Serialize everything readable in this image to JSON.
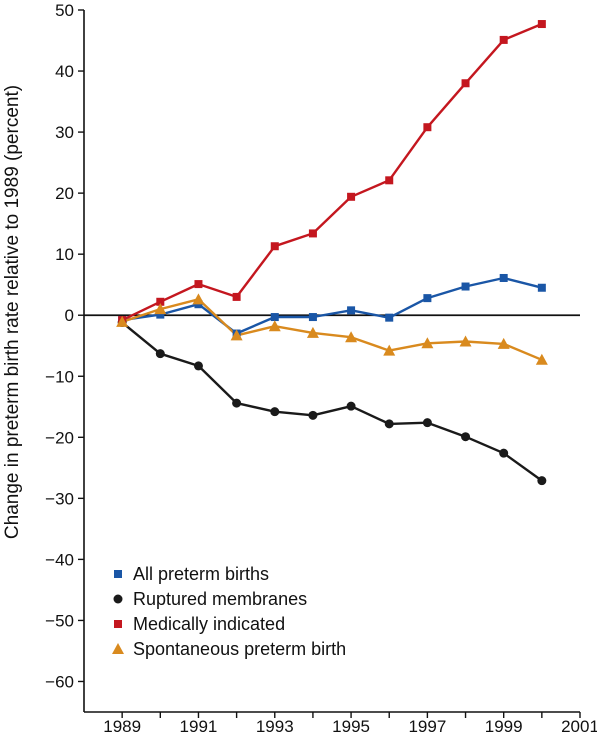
{
  "chart_data": {
    "type": "line",
    "title": "",
    "xlabel": "",
    "ylabel": "Change in preterm birth rate relative to 1989 (percent)",
    "xlim": [
      1988,
      2001
    ],
    "ylim": [
      -65,
      50
    ],
    "x_ticks": [
      1989,
      1991,
      1993,
      1995,
      1997,
      1999,
      2001
    ],
    "y_ticks": [
      50,
      40,
      30,
      20,
      10,
      0,
      -10,
      -20,
      -30,
      -40,
      -50,
      -60
    ],
    "zero_line": true,
    "grid": false,
    "legend_position": "bottom-left",
    "x": [
      1989,
      1990,
      1991,
      1992,
      1993,
      1994,
      1995,
      1996,
      1997,
      1998,
      1999,
      2000
    ],
    "series": [
      {
        "name": "All preterm births",
        "color": "#1a56a6",
        "marker": "square",
        "values": [
          -0.8,
          0.1,
          1.8,
          -3.0,
          -0.3,
          -0.3,
          0.8,
          -0.4,
          2.8,
          4.7,
          6.1,
          4.5
        ]
      },
      {
        "name": "Ruptured membranes",
        "color": "#1a1a1a",
        "marker": "circle",
        "values": [
          -1.2,
          -6.3,
          -8.3,
          -14.4,
          -15.8,
          -16.4,
          -14.9,
          -17.8,
          -17.6,
          -19.9,
          -22.6,
          -27.1
        ]
      },
      {
        "name": "Medically indicated",
        "color": "#c4171f",
        "marker": "square",
        "values": [
          -0.8,
          2.2,
          5.1,
          3.0,
          11.3,
          13.4,
          19.4,
          22.1,
          30.8,
          38.0,
          45.1,
          47.7
        ]
      },
      {
        "name": "Spontaneous preterm birth",
        "color": "#d98a1e",
        "marker": "triangle",
        "values": [
          -1.1,
          1.0,
          2.6,
          -3.3,
          -1.8,
          -2.9,
          -3.6,
          -5.8,
          -4.6,
          -4.3,
          -4.7,
          -7.3
        ]
      }
    ]
  }
}
